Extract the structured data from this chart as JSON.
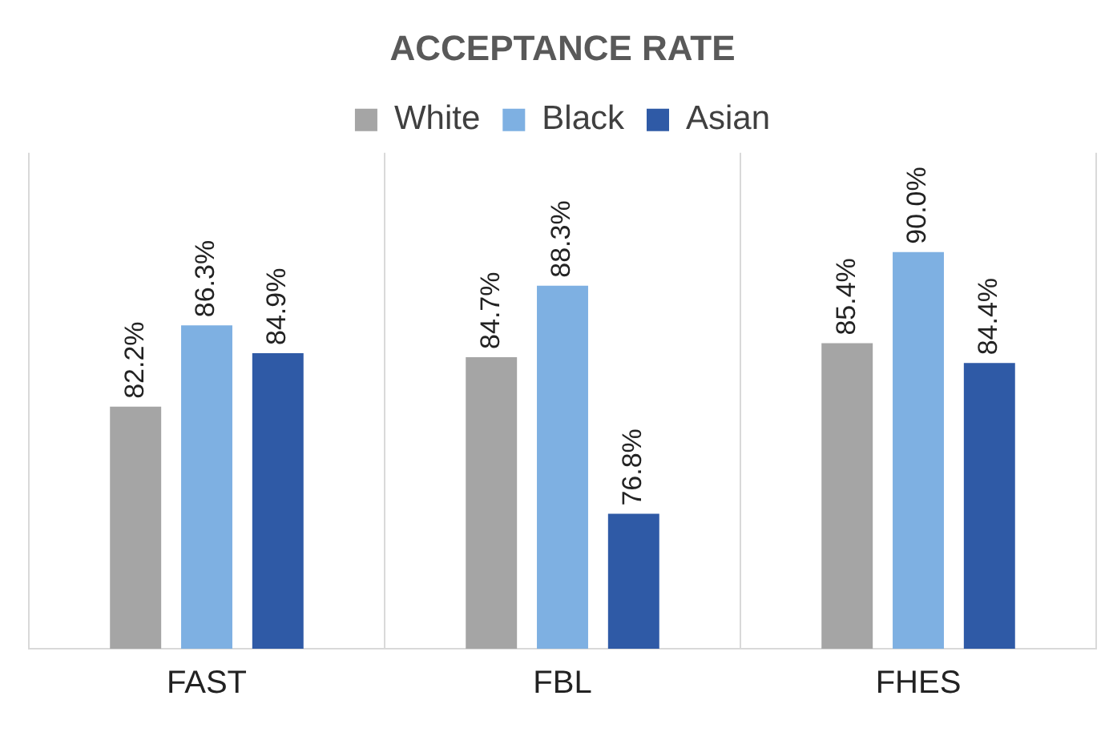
{
  "chart_data": {
    "type": "bar",
    "title": "ACCEPTANCE RATE",
    "categories": [
      "FAST",
      "FBL",
      "FHES"
    ],
    "series": [
      {
        "name": "White",
        "color": "#a5a5a5",
        "values": [
          82.2,
          84.7,
          85.4
        ],
        "value_labels": [
          "82.2%",
          "84.7%",
          "85.4%"
        ]
      },
      {
        "name": "Black",
        "color": "#7eb0e2",
        "values": [
          86.3,
          88.3,
          90.0
        ],
        "value_labels": [
          "86.3%",
          "88.3%",
          "90.0%"
        ]
      },
      {
        "name": "Asian",
        "color": "#2f5aa6",
        "values": [
          84.9,
          76.8,
          84.4
        ],
        "value_labels": [
          "84.9%",
          "76.8%",
          "84.4%"
        ]
      }
    ],
    "ylim": [
      70,
      95
    ],
    "grid": "x",
    "legend": "top",
    "tick_labels": "x"
  }
}
